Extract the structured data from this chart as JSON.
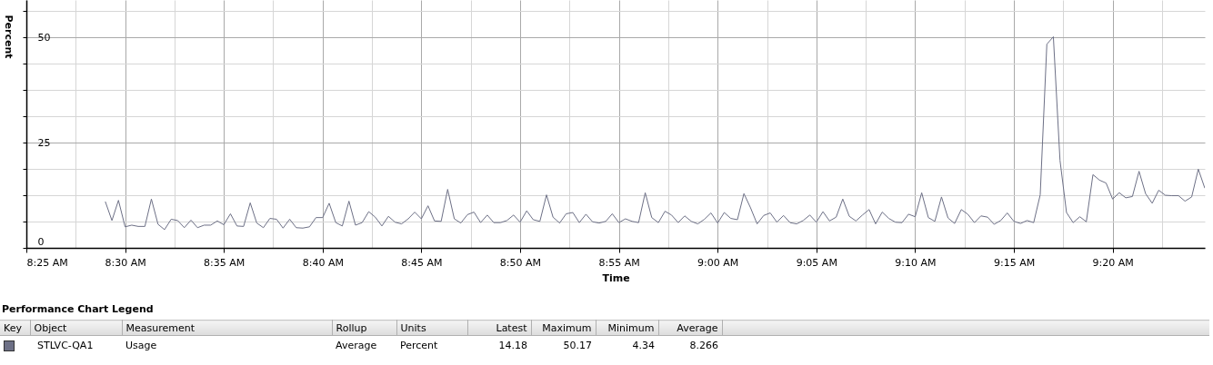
{
  "chart_data": {
    "type": "line",
    "xlabel": "Time",
    "ylabel": "Percent",
    "legend_title": "Performance Chart Legend",
    "legend": "bottom",
    "grid": true,
    "xlim": [
      8.4167,
      9.4111
    ],
    "ylim": [
      0,
      58.9
    ],
    "xticks": [
      {
        "value": 8.4167,
        "label": "8:25 AM"
      },
      {
        "value": 8.4583,
        "label": null
      },
      {
        "value": 8.5,
        "label": "8:30 AM"
      },
      {
        "value": 8.5417,
        "label": null
      },
      {
        "value": 8.5833,
        "label": "8:35 AM"
      },
      {
        "value": 8.625,
        "label": null
      },
      {
        "value": 8.6667,
        "label": "8:40 AM"
      },
      {
        "value": 8.7083,
        "label": null
      },
      {
        "value": 8.75,
        "label": "8:45 AM"
      },
      {
        "value": 8.7917,
        "label": null
      },
      {
        "value": 8.8333,
        "label": "8:50 AM"
      },
      {
        "value": 8.875,
        "label": null
      },
      {
        "value": 8.9167,
        "label": "8:55 AM"
      },
      {
        "value": 8.9583,
        "label": null
      },
      {
        "value": 9.0,
        "label": "9:00 AM"
      },
      {
        "value": 9.0417,
        "label": null
      },
      {
        "value": 9.0833,
        "label": "9:05 AM"
      },
      {
        "value": 9.125,
        "label": null
      },
      {
        "value": 9.1667,
        "label": "9:10 AM"
      },
      {
        "value": 9.2083,
        "label": null
      },
      {
        "value": 9.25,
        "label": "9:15 AM"
      },
      {
        "value": 9.2917,
        "label": null
      },
      {
        "value": 9.3333,
        "label": "9:20 AM"
      },
      {
        "value": 9.375,
        "label": null
      }
    ],
    "yticks": [
      0,
      {
        "value": 6.25,
        "label": null
      },
      {
        "value": 12.5,
        "label": null
      },
      {
        "value": 18.75,
        "label": null
      },
      25,
      {
        "value": 31.25,
        "label": null
      },
      {
        "value": 37.5,
        "label": null
      },
      {
        "value": 43.75,
        "label": null
      },
      50,
      {
        "value": 56.25,
        "label": null
      }
    ],
    "x": [
      8.4833,
      8.4889,
      8.4944,
      8.5,
      8.5056,
      8.5111,
      8.5167,
      8.5222,
      8.5278,
      8.5333,
      8.5389,
      8.5444,
      8.55,
      8.5556,
      8.5611,
      8.5667,
      8.5722,
      8.5778,
      8.5833,
      8.5889,
      8.5944,
      8.6,
      8.6056,
      8.6111,
      8.6167,
      8.6222,
      8.6278,
      8.6333,
      8.6389,
      8.6444,
      8.65,
      8.6556,
      8.6611,
      8.6667,
      8.6722,
      8.6778,
      8.6833,
      8.6889,
      8.6944,
      8.7,
      8.7056,
      8.7111,
      8.7167,
      8.7222,
      8.7278,
      8.7333,
      8.7389,
      8.7444,
      8.75,
      8.7556,
      8.7611,
      8.7667,
      8.7722,
      8.7778,
      8.7833,
      8.7889,
      8.7944,
      8.8,
      8.8056,
      8.8111,
      8.8167,
      8.8222,
      8.8278,
      8.8333,
      8.8389,
      8.8444,
      8.85,
      8.8556,
      8.8611,
      8.8667,
      8.8722,
      8.8778,
      8.8833,
      8.8889,
      8.8944,
      8.9,
      8.9056,
      8.9111,
      8.9167,
      8.9222,
      8.9278,
      8.9333,
      8.9389,
      8.9444,
      8.95,
      8.9556,
      8.9611,
      8.9667,
      8.9722,
      8.9778,
      8.9833,
      8.9889,
      8.9944,
      9.0,
      9.0056,
      9.0111,
      9.0167,
      9.0222,
      9.0278,
      9.0333,
      9.0389,
      9.0444,
      9.05,
      9.0556,
      9.0611,
      9.0667,
      9.0722,
      9.0778,
      9.0833,
      9.0889,
      9.0944,
      9.1,
      9.1056,
      9.1111,
      9.1167,
      9.1222,
      9.1278,
      9.1333,
      9.1389,
      9.1444,
      9.15,
      9.1556,
      9.1611,
      9.1667,
      9.1722,
      9.1778,
      9.1833,
      9.1889,
      9.1944,
      9.2,
      9.2056,
      9.2111,
      9.2167,
      9.2222,
      9.2278,
      9.2333,
      9.2389,
      9.2444,
      9.25,
      9.2556,
      9.2611,
      9.2667,
      9.2722,
      9.2778,
      9.2833,
      9.2889,
      9.2944,
      9.3,
      9.3056,
      9.3111,
      9.3167,
      9.3222,
      9.3278,
      9.3333,
      9.3389,
      9.3444,
      9.35,
      9.3556,
      9.3611,
      9.3667,
      9.3722,
      9.3778,
      9.3833,
      9.3889,
      9.3944,
      9.4,
      9.4056,
      9.4111
    ],
    "series": [
      {
        "name": "STLVC-QA1",
        "color": "#6d7086",
        "values": [
          11.0,
          6.5,
          11.3,
          5.0,
          5.4,
          5.1,
          5.1,
          11.6,
          5.6,
          4.34,
          6.8,
          6.5,
          4.8,
          6.6,
          4.8,
          5.4,
          5.4,
          6.4,
          5.5,
          8.1,
          5.2,
          5.1,
          10.7,
          5.9,
          4.8,
          7.0,
          6.8,
          4.7,
          6.8,
          4.8,
          4.7,
          5.0,
          7.2,
          7.2,
          10.6,
          6.0,
          5.2,
          11.1,
          5.4,
          6.0,
          8.6,
          7.3,
          5.2,
          7.5,
          6.1,
          5.7,
          6.9,
          8.5,
          6.9,
          10.0,
          6.4,
          6.3,
          13.9,
          6.9,
          5.9,
          7.9,
          8.5,
          6.0,
          7.8,
          6.0,
          6.0,
          6.5,
          7.8,
          6.1,
          8.8,
          6.7,
          6.3,
          12.6,
          7.3,
          5.9,
          8.1,
          8.4,
          6.0,
          8.0,
          6.2,
          5.9,
          6.3,
          8.1,
          6.0,
          6.9,
          6.3,
          6.0,
          13.1,
          7.2,
          6.0,
          8.7,
          7.8,
          6.0,
          7.6,
          6.3,
          5.7,
          6.8,
          8.3,
          5.9,
          8.4,
          7.0,
          6.7,
          12.9,
          9.5,
          5.7,
          7.7,
          8.3,
          6.1,
          7.7,
          6.0,
          5.7,
          6.5,
          7.8,
          6.1,
          8.6,
          6.4,
          7.3,
          11.6,
          7.5,
          6.4,
          7.8,
          9.1,
          5.7,
          8.5,
          7.0,
          6.1,
          6.0,
          8.0,
          7.4,
          13.1,
          7.2,
          6.3,
          12.1,
          7.1,
          5.8,
          9.1,
          8.0,
          6.0,
          7.6,
          7.3,
          5.6,
          6.5,
          8.3,
          6.3,
          5.8,
          6.5,
          6.0,
          12.6,
          48.4,
          50.17,
          20.8,
          8.4,
          6.0,
          7.4,
          6.2,
          17.4,
          16.1,
          15.4,
          11.6,
          13.1,
          11.9,
          12.2,
          18.2,
          12.9,
          10.6,
          13.7,
          12.5,
          12.4,
          12.4,
          11.1,
          12.1,
          18.7,
          14.18
        ]
      }
    ],
    "annotations": [
      "Key",
      "Object",
      "Measurement",
      "Rollup",
      "Units",
      "Latest",
      "Maximum",
      "Minimum",
      "Average",
      "Usage",
      "Average",
      "Percent",
      "14.18",
      "50.17",
      "4.34",
      "8.266"
    ]
  }
}
